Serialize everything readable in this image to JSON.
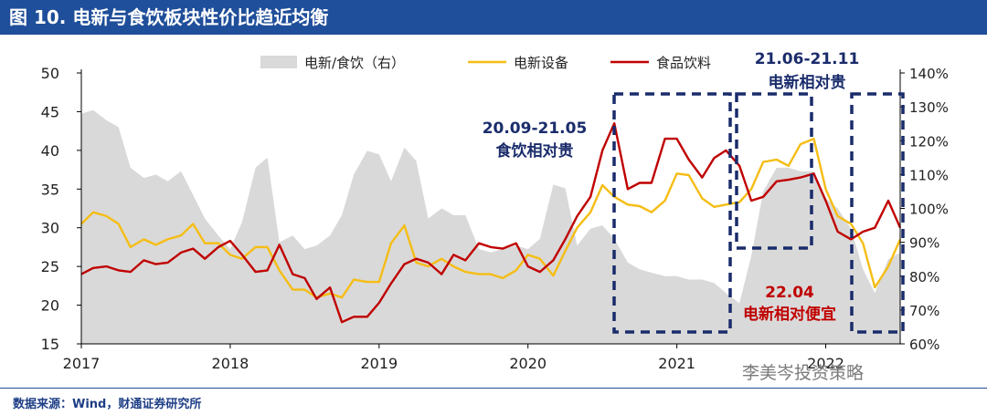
{
  "header": {
    "title": "图 10. 电新与食饮板块性价比趋近均衡"
  },
  "footer": {
    "source": "数据来源：Wind，财通证券研究所",
    "watermark": "李美岑投资策略"
  },
  "colors": {
    "title_bg": "#1f4e9a",
    "area": "#d9d9d9",
    "yellow": "#f5bd14",
    "red": "#c00000",
    "box": "#1a2c6b",
    "red_text": "#c00000"
  },
  "chart_data": {
    "type": "line",
    "xlabel": "",
    "ylabel": "",
    "x_ticks": [
      "2017",
      "2018",
      "2019",
      "2020",
      "2021",
      "2022"
    ],
    "x_range": [
      2017.0,
      2022.5
    ],
    "left_axis": {
      "min": 15,
      "max": 50,
      "ticks": [
        "50",
        "45",
        "40",
        "35",
        "30",
        "25",
        "20",
        "15"
      ]
    },
    "right_axis": {
      "min": 60,
      "max": 140,
      "ticks": [
        "140%",
        "130%",
        "120%",
        "110%",
        "100%",
        "90%",
        "80%",
        "70%",
        "60%"
      ]
    },
    "legend": [
      {
        "label": "电新/食饮（右）",
        "kind": "area"
      },
      {
        "label": "电新设备",
        "kind": "line-yellow"
      },
      {
        "label": "食品饮料",
        "kind": "line-red"
      }
    ],
    "series": [
      {
        "name": "电新/食饮（右）",
        "axis": "right",
        "type": "area",
        "x": [
          2017.0,
          2017.08,
          2017.17,
          2017.25,
          2017.33,
          2017.42,
          2017.5,
          2017.58,
          2017.67,
          2017.75,
          2017.83,
          2017.92,
          2018.0,
          2018.08,
          2018.17,
          2018.25,
          2018.33,
          2018.42,
          2018.5,
          2018.58,
          2018.67,
          2018.75,
          2018.83,
          2018.92,
          2019.0,
          2019.08,
          2019.17,
          2019.25,
          2019.33,
          2019.42,
          2019.5,
          2019.58,
          2019.67,
          2019.75,
          2019.83,
          2019.92,
          2020.0,
          2020.08,
          2020.17,
          2020.25,
          2020.33,
          2020.42,
          2020.5,
          2020.58,
          2020.67,
          2020.75,
          2020.83,
          2020.92,
          2021.0,
          2021.08,
          2021.17,
          2021.25,
          2021.33,
          2021.42,
          2021.5,
          2021.58,
          2021.67,
          2021.75,
          2021.83,
          2021.92,
          2022.0,
          2022.08,
          2022.17,
          2022.25,
          2022.33,
          2022.42,
          2022.5
        ],
        "values": [
          128,
          129,
          126,
          124,
          112,
          109,
          110,
          108,
          111,
          104,
          97,
          92,
          88,
          96,
          112,
          115,
          90,
          92,
          88,
          89,
          92,
          98,
          110,
          117,
          116,
          108,
          118,
          114,
          97,
          100,
          98,
          98,
          88,
          87,
          88,
          89,
          88,
          91,
          107,
          106,
          89,
          94,
          95,
          91,
          84,
          82,
          81,
          80,
          80,
          79,
          79,
          78,
          75,
          72,
          86,
          105,
          112,
          112,
          111,
          111,
          103,
          100,
          94,
          82,
          75,
          85,
          87
        ]
      },
      {
        "name": "电新设备",
        "axis": "left",
        "type": "line",
        "x": [
          2017.0,
          2017.08,
          2017.17,
          2017.25,
          2017.33,
          2017.42,
          2017.5,
          2017.58,
          2017.67,
          2017.75,
          2017.83,
          2017.92,
          2018.0,
          2018.08,
          2018.17,
          2018.25,
          2018.33,
          2018.42,
          2018.5,
          2018.58,
          2018.67,
          2018.75,
          2018.83,
          2018.92,
          2019.0,
          2019.08,
          2019.17,
          2019.25,
          2019.33,
          2019.42,
          2019.5,
          2019.58,
          2019.67,
          2019.75,
          2019.83,
          2019.92,
          2020.0,
          2020.08,
          2020.17,
          2020.25,
          2020.33,
          2020.42,
          2020.5,
          2020.58,
          2020.67,
          2020.75,
          2020.83,
          2020.92,
          2021.0,
          2021.08,
          2021.17,
          2021.25,
          2021.33,
          2021.42,
          2021.5,
          2021.58,
          2021.67,
          2021.75,
          2021.83,
          2021.92,
          2022.0,
          2022.08,
          2022.17,
          2022.25,
          2022.33,
          2022.42,
          2022.5
        ],
        "values": [
          30.5,
          32.0,
          31.5,
          30.5,
          27.5,
          28.5,
          27.8,
          28.5,
          29.0,
          30.5,
          28.0,
          28.0,
          26.5,
          26.0,
          27.5,
          27.5,
          24.5,
          22.0,
          22.0,
          21.0,
          21.5,
          21.0,
          23.3,
          23.0,
          23.0,
          28.0,
          30.3,
          25.5,
          25.0,
          26.0,
          25.0,
          24.3,
          24.0,
          24.0,
          23.5,
          24.5,
          26.5,
          26.0,
          23.8,
          27.0,
          30.0,
          32.0,
          35.5,
          34.0,
          33.0,
          32.8,
          32.0,
          33.5,
          37.0,
          36.8,
          33.8,
          32.7,
          33.0,
          33.3,
          35.0,
          38.5,
          38.8,
          38.0,
          40.8,
          41.5,
          35.0,
          31.5,
          30.5,
          28.0,
          22.3,
          25.0,
          28.5
        ]
      },
      {
        "name": "食品饮料",
        "axis": "left",
        "type": "line",
        "x": [
          2017.0,
          2017.08,
          2017.17,
          2017.25,
          2017.33,
          2017.42,
          2017.5,
          2017.58,
          2017.67,
          2017.75,
          2017.83,
          2017.92,
          2018.0,
          2018.08,
          2018.17,
          2018.25,
          2018.33,
          2018.42,
          2018.5,
          2018.58,
          2018.67,
          2018.75,
          2018.83,
          2018.92,
          2019.0,
          2019.08,
          2019.17,
          2019.25,
          2019.33,
          2019.42,
          2019.5,
          2019.58,
          2019.67,
          2019.75,
          2019.83,
          2019.92,
          2020.0,
          2020.08,
          2020.17,
          2020.25,
          2020.33,
          2020.42,
          2020.5,
          2020.58,
          2020.67,
          2020.75,
          2020.83,
          2020.92,
          2021.0,
          2021.08,
          2021.17,
          2021.25,
          2021.33,
          2021.42,
          2021.5,
          2021.58,
          2021.67,
          2021.75,
          2021.83,
          2021.92,
          2022.0,
          2022.08,
          2022.17,
          2022.25,
          2022.33,
          2022.42,
          2022.5
        ],
        "values": [
          24.0,
          24.8,
          25.0,
          24.5,
          24.3,
          25.8,
          25.3,
          25.5,
          26.8,
          27.3,
          26.0,
          27.5,
          28.3,
          26.5,
          24.3,
          24.5,
          27.8,
          24.0,
          23.5,
          20.8,
          22.3,
          17.8,
          18.5,
          18.5,
          20.3,
          22.8,
          25.3,
          26.0,
          25.5,
          24.0,
          26.5,
          25.8,
          28.0,
          27.5,
          27.3,
          28.0,
          25.0,
          24.3,
          25.8,
          28.5,
          31.5,
          34.0,
          40.0,
          43.5,
          35.0,
          35.8,
          35.8,
          41.5,
          41.5,
          38.8,
          36.5,
          39.0,
          40.0,
          38.0,
          33.5,
          34.0,
          36.0,
          36.2,
          36.5,
          37.0,
          33.5,
          29.5,
          28.5,
          29.5,
          30.0,
          33.5,
          30.0
        ]
      }
    ],
    "annotations": [
      {
        "text": "20.09-21.05",
        "text2": "食饮相对贵",
        "color": "navy"
      },
      {
        "text": "21.06-21.11",
        "text2": "电新相对贵",
        "color": "navy"
      },
      {
        "text": "22.04",
        "text2": "电新相对便宜",
        "color": "red"
      }
    ]
  }
}
